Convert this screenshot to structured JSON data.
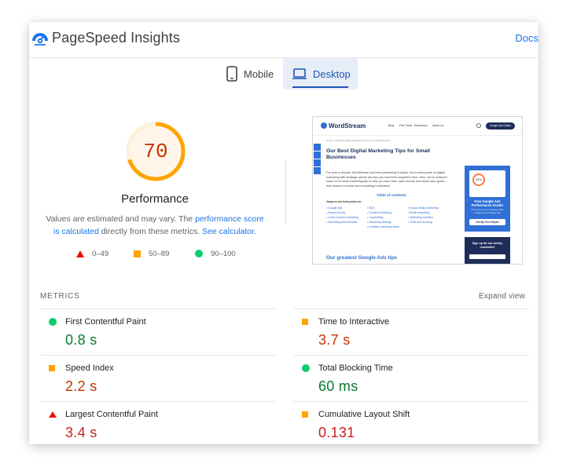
{
  "app": {
    "title": "PageSpeed Insights",
    "docs_label": "Docs"
  },
  "tabs": [
    {
      "label": "Mobile",
      "icon": "phone-icon",
      "selected": false
    },
    {
      "label": "Desktop",
      "icon": "monitor-icon",
      "selected": true
    }
  ],
  "score": {
    "value": "70",
    "score_fraction": 0.7,
    "label": "Performance",
    "desc_prefix": "Values are estimated and may vary. The ",
    "desc_link1": "performance score is calculated",
    "desc_middle": " directly from these metrics. ",
    "desc_link2": "See calculator."
  },
  "legend": [
    {
      "label": "0–49",
      "shape": "triangle",
      "color": "#eb0f00"
    },
    {
      "label": "50–89",
      "shape": "square",
      "color": "#ffa400"
    },
    {
      "label": "90–100",
      "shape": "circle",
      "color": "#0cce6b"
    }
  ],
  "thumbnail": {
    "logo": "WordStream",
    "menu": [
      "Blog",
      "Free Tools",
      "Resources",
      "About Us"
    ],
    "cta": "Google Ads Grader",
    "breadcrumb": "Home > Our Best Digital Marketing Tips for Small Businesses",
    "headline": "Our Best Digital Marketing Tips for Small Businesses",
    "intro": "For over a decade, WordStream has been publishing in-depth, fun-to-read posts on digital marketing with strategic advice and tips you won't find anywhere else. Here, we've surfaced some of our best marketing tips to help you save time, save money, and reach your goals—from search to social and everything in between!",
    "toc_title": "Table of contents",
    "jump_label": "Jump to our best posts on:",
    "toc_col1": [
      "Google Ads",
      "Facebook ads",
      "Cross-channel marketing",
      "Advertising benchmarks"
    ],
    "toc_col2": [
      "SEO",
      "Content marketing",
      "Copywriting",
      "Marketing strategy",
      "Creative marketing ideas"
    ],
    "toc_col3": [
      "Social media marketing",
      "Email marketing",
      "Marketing statistics",
      "Tools and learning"
    ],
    "section_heading": "Our greatest Google Ads tips",
    "ad1_score": "62%",
    "ad1_title": "Free Google Ads Performance Grader",
    "ad1_sub": "Find out if you're making costly mistakes with Google Ads.",
    "ad1_button": "Get My Free Report",
    "ad2_text": "Sign up for our weekly newsletter!"
  },
  "metrics": {
    "section_title": "METRICS",
    "expand_label": "Expand view",
    "items": [
      {
        "name": "First Contentful Paint",
        "value": "0.8 s",
        "rating": "good"
      },
      {
        "name": "Time to Interactive",
        "value": "3.7 s",
        "rating": "average"
      },
      {
        "name": "Speed Index",
        "value": "2.2 s",
        "rating": "average"
      },
      {
        "name": "Total Blocking Time",
        "value": "60 ms",
        "rating": "good"
      },
      {
        "name": "Largest Contentful Paint",
        "value": "3.4 s",
        "rating": "poor"
      },
      {
        "name": "Cumulative Layout Shift",
        "value": "0.131",
        "rating": "average"
      }
    ]
  },
  "colors": {
    "accent": "#1a73e8",
    "good": "#0cce6b",
    "average": "#ffa400",
    "poor": "#eb0f00",
    "gauge": "#ffa400",
    "gauge_bg": "#fff3e0"
  }
}
